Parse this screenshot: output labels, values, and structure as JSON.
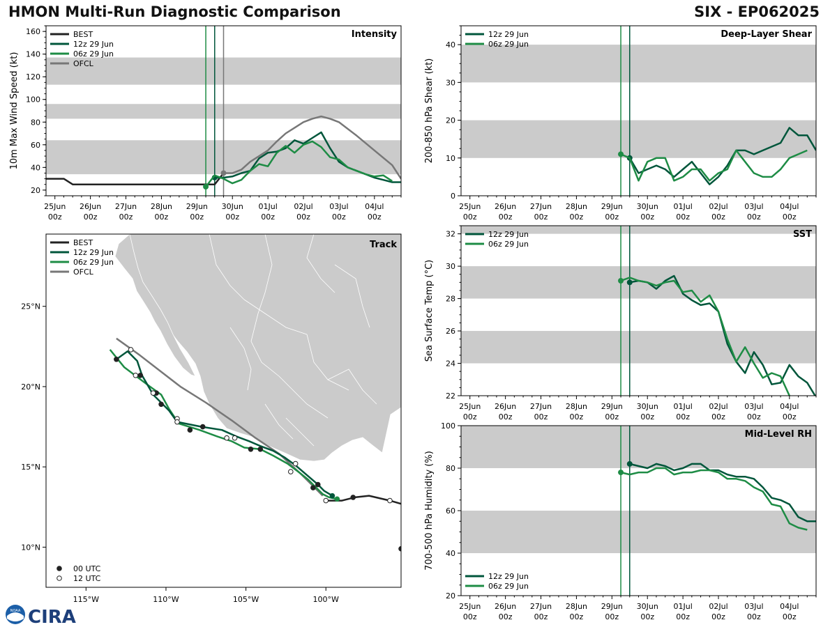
{
  "header": {
    "title": "HMON Multi-Run Diagnostic Comparison",
    "storm": "SIX - EP062025"
  },
  "colors": {
    "best": "#222222",
    "run12": "#00563b",
    "run06": "#1e8c45",
    "ofcl": "#777777",
    "band": "#cbcbcb",
    "land": "#cbcbcb"
  },
  "logos": {
    "cira": "CIRA",
    "noaa": "NOAA"
  },
  "time_axis": {
    "labels": [
      [
        "25Jun",
        "00z"
      ],
      [
        "26Jun",
        "00z"
      ],
      [
        "27Jun",
        "00z"
      ],
      [
        "28Jun",
        "00z"
      ],
      [
        "29Jun",
        "00z"
      ],
      [
        "30Jun",
        "00z"
      ],
      [
        "01Jul",
        "00z"
      ],
      [
        "02Jul",
        "00z"
      ],
      [
        "03Jul",
        "00z"
      ],
      [
        "04Jul",
        "00z"
      ]
    ]
  },
  "chart_data": [
    {
      "id": "intensity",
      "type": "line",
      "title": "Intensity",
      "ylabel": "10m Max Wind Speed (kt)",
      "ylim": [
        15,
        165
      ],
      "yticks": [
        20,
        40,
        60,
        80,
        100,
        120,
        140,
        160
      ],
      "xlim": [
        -0.25,
        9.75
      ],
      "bands": [
        [
          34,
          64
        ],
        [
          83,
          96
        ],
        [
          113,
          137
        ]
      ],
      "vlines": [
        {
          "x": 4.25,
          "color": "run06"
        },
        {
          "x": 4.5,
          "color": "run12"
        },
        {
          "x": 4.75,
          "color": "ofcl"
        }
      ],
      "legend": [
        "BEST",
        "12z 29 Jun",
        "06z 29 Jun",
        "OFCL"
      ],
      "series": [
        {
          "name": "BEST",
          "color": "best",
          "x": [
            -0.25,
            0.25,
            0.5,
            4.5,
            4.75
          ],
          "y": [
            30,
            30,
            25,
            25,
            35
          ]
        },
        {
          "name": "12z 29 Jun",
          "color": "run12",
          "marker_start": true,
          "x": [
            4.5,
            4.75,
            5,
            5.25,
            5.5,
            5.75,
            6,
            6.25,
            6.5,
            6.75,
            7,
            7.25,
            7.5,
            7.75,
            8,
            8.25,
            8.5,
            8.75,
            9,
            9.25,
            9.5,
            9.75
          ],
          "y": [
            31,
            31,
            32,
            35,
            37,
            48,
            53,
            54,
            57,
            64,
            61,
            66,
            71,
            57,
            45,
            40,
            37,
            34,
            31,
            29,
            27,
            27
          ]
        },
        {
          "name": "06z 29 Jun",
          "color": "run06",
          "marker_start": true,
          "x": [
            4.25,
            4.5,
            4.75,
            5,
            5.25,
            5.5,
            5.75,
            6,
            6.25,
            6.5,
            6.75,
            7,
            7.25,
            7.5,
            7.75,
            8,
            8.25,
            8.5,
            8.75,
            9,
            9.25,
            9.5
          ],
          "y": [
            23,
            33,
            30,
            26,
            29,
            37,
            43,
            41,
            53,
            59,
            53,
            60,
            63,
            58,
            49,
            47,
            40,
            37,
            34,
            32,
            33,
            28
          ]
        },
        {
          "name": "OFCL",
          "color": "ofcl",
          "marker_start": true,
          "x": [
            4.75,
            5,
            5.25,
            5.5,
            5.75,
            6,
            6.25,
            6.5,
            6.75,
            7,
            7.25,
            7.5,
            7.75,
            8,
            8.5,
            9,
            9.5,
            9.75
          ],
          "y": [
            35,
            35,
            38,
            45,
            50,
            55,
            63,
            70,
            75,
            80,
            83,
            85,
            83,
            80,
            68,
            55,
            42,
            30
          ]
        }
      ]
    },
    {
      "id": "track",
      "type": "scatter",
      "title": "Track",
      "xlim": [
        -117.5,
        -95.3
      ],
      "ylim": [
        7.5,
        29.5
      ],
      "xticks": [
        -115,
        -110,
        -105,
        -100
      ],
      "xtick_labels": [
        "115°W",
        "110°W",
        "105°W",
        "100°W"
      ],
      "yticks": [
        10,
        15,
        20,
        25
      ],
      "ytick_labels": [
        "10°N",
        "15°N",
        "20°N",
        "25°N"
      ],
      "legend": [
        "BEST",
        "12z 29 Jun",
        "06z 29 Jun",
        "OFCL"
      ],
      "marker_legend": [
        "00 UTC",
        "12 UTC"
      ],
      "series": [
        {
          "name": "BEST",
          "color": "best",
          "lon": [
            -95.3,
            -96.0,
            -97.3,
            -98.2,
            -99.0,
            -99.9
          ],
          "lat": [
            12.7,
            12.9,
            13.2,
            13.1,
            12.9,
            12.9
          ]
        },
        {
          "name": "12z 29 Jun",
          "color": "run12",
          "lon": [
            -99.6,
            -100.1,
            -100.5,
            -101.2,
            -101.9,
            -102.6,
            -103.3,
            -104.1,
            -104.8,
            -105.6,
            -106.5,
            -107.8,
            -109.3,
            -109.8,
            -110.3,
            -110.8,
            -111.5,
            -111.8,
            -112.4,
            -113.1
          ],
          "lat": [
            13.2,
            13.5,
            13.9,
            14.5,
            15.1,
            15.6,
            16.0,
            16.3,
            16.6,
            16.9,
            17.3,
            17.5,
            17.8,
            18.5,
            19.0,
            19.5,
            20.7,
            21.6,
            22.2,
            21.7
          ]
        },
        {
          "name": "06z 29 Jun",
          "color": "run06",
          "lon": [
            -99.3,
            -99.8,
            -100.2,
            -100.6,
            -101.1,
            -101.6,
            -102.4,
            -103.3,
            -104.1,
            -105.1,
            -105.9,
            -106.8,
            -107.9,
            -109.2,
            -109.8,
            -110.3,
            -111.0,
            -111.8,
            -112.6,
            -113.5
          ],
          "lat": [
            13.0,
            13.1,
            13.3,
            13.7,
            14.2,
            14.6,
            15.2,
            15.7,
            16.1,
            16.2,
            16.6,
            16.9,
            17.3,
            17.7,
            18.6,
            19.5,
            20.0,
            20.6,
            21.2,
            22.3
          ]
        },
        {
          "name": "OFCL",
          "color": "ofcl",
          "lon": [
            -100.2,
            -100.6,
            -101.5,
            -102.9,
            -104.4,
            -105.9,
            -107.5,
            -109.1,
            -110.4,
            -111.7,
            -113.1
          ],
          "lat": [
            13.2,
            13.6,
            14.5,
            15.8,
            16.8,
            17.9,
            19.0,
            20.0,
            21.0,
            22.0,
            23.0
          ]
        }
      ],
      "markers_00utc": [
        {
          "lon": -98.3,
          "lat": 13.1,
          "color": "best"
        },
        {
          "lon": -100.5,
          "lat": 13.9,
          "color": "best"
        },
        {
          "lon": -100.8,
          "lat": 13.7,
          "color": "best"
        },
        {
          "lon": -104.1,
          "lat": 16.1,
          "color": "best"
        },
        {
          "lon": -104.7,
          "lat": 16.1,
          "color": "best"
        },
        {
          "lon": -107.7,
          "lat": 17.5,
          "color": "best"
        },
        {
          "lon": -108.5,
          "lat": 17.3,
          "color": "best"
        },
        {
          "lon": -110.3,
          "lat": 18.9,
          "color": "best"
        },
        {
          "lon": -110.6,
          "lat": 19.6,
          "color": "best"
        },
        {
          "lon": -111.6,
          "lat": 20.7,
          "color": "best"
        },
        {
          "lon": -113.1,
          "lat": 21.7,
          "color": "best"
        },
        {
          "lon": -99.6,
          "lat": 13.2,
          "color": "run12"
        },
        {
          "lon": -99.3,
          "lat": 13.0,
          "color": "run06"
        },
        {
          "lon": -95.3,
          "lat": 9.9,
          "color": "best"
        }
      ],
      "markers_12utc": [
        {
          "lon": -96.0,
          "lat": 12.9
        },
        {
          "lon": -100.0,
          "lat": 12.9
        },
        {
          "lon": -101.9,
          "lat": 15.2
        },
        {
          "lon": -102.2,
          "lat": 14.7
        },
        {
          "lon": -105.7,
          "lat": 16.8
        },
        {
          "lon": -106.2,
          "lat": 16.8
        },
        {
          "lon": -109.3,
          "lat": 18.0
        },
        {
          "lon": -109.3,
          "lat": 17.8
        },
        {
          "lon": -110.8,
          "lat": 19.6
        },
        {
          "lon": -111.9,
          "lat": 20.7
        },
        {
          "lon": -112.2,
          "lat": 22.3
        }
      ]
    },
    {
      "id": "shear",
      "type": "line",
      "title": "Deep-Layer Shear",
      "ylabel": "200-850 hPa Shear (kt)",
      "ylim": [
        0,
        45
      ],
      "yticks": [
        0,
        10,
        20,
        30,
        40
      ],
      "xlim": [
        -0.25,
        9.75
      ],
      "bands": [
        [
          10,
          20
        ],
        [
          30,
          40
        ]
      ],
      "vlines": [
        {
          "x": 4.25,
          "color": "run06"
        },
        {
          "x": 4.5,
          "color": "run12"
        }
      ],
      "legend": [
        "12z 29 Jun",
        "06z 29 Jun"
      ],
      "series": [
        {
          "name": "12z 29 Jun",
          "color": "run12",
          "marker_start": true,
          "x": [
            4.5,
            4.75,
            5,
            5.25,
            5.5,
            5.75,
            6,
            6.25,
            6.5,
            6.75,
            7,
            7.25,
            7.5,
            7.75,
            8,
            8.25,
            8.5,
            8.75,
            9,
            9.25,
            9.5,
            9.75
          ],
          "y": [
            10,
            6,
            7,
            8,
            7,
            5,
            7,
            9,
            6,
            3,
            5,
            8,
            12,
            12,
            11,
            12,
            13,
            14,
            18,
            16,
            16,
            12
          ]
        },
        {
          "name": "06z 29 Jun",
          "color": "run06",
          "marker_start": true,
          "x": [
            4.25,
            4.5,
            4.75,
            5,
            5.25,
            5.5,
            5.75,
            6,
            6.25,
            6.5,
            6.75,
            7,
            7.25,
            7.5,
            7.75,
            8,
            8.25,
            8.5,
            8.75,
            9,
            9.25,
            9.5
          ],
          "y": [
            11,
            10,
            4,
            9,
            10,
            10,
            4,
            5,
            7,
            7,
            4,
            6,
            7,
            12,
            9,
            6,
            5,
            5,
            7,
            10,
            11,
            12
          ]
        }
      ]
    },
    {
      "id": "sst",
      "type": "line",
      "title": "SST",
      "ylabel": "Sea Surface Temp (°C)",
      "ylim": [
        22,
        32.5
      ],
      "yticks": [
        22,
        24,
        26,
        28,
        30,
        32
      ],
      "xlim": [
        -0.25,
        9.75
      ],
      "bands": [
        [
          24,
          26
        ],
        [
          28,
          30
        ],
        [
          32,
          32.5
        ]
      ],
      "vlines": [
        {
          "x": 4.25,
          "color": "run06"
        },
        {
          "x": 4.5,
          "color": "run12"
        }
      ],
      "legend": [
        "12z 29 Jun",
        "06z 29 Jun"
      ],
      "series": [
        {
          "name": "12z 29 Jun",
          "color": "run12",
          "marker_start": true,
          "x": [
            4.5,
            4.75,
            5,
            5.25,
            5.5,
            5.75,
            6,
            6.25,
            6.5,
            6.75,
            7,
            7.25,
            7.5,
            7.75,
            8,
            8.25,
            8.5,
            8.75,
            9,
            9.25,
            9.5,
            9.75
          ],
          "y": [
            29.0,
            29.1,
            29.0,
            28.6,
            29.1,
            29.4,
            28.3,
            27.9,
            27.6,
            27.7,
            27.2,
            25.2,
            24.1,
            23.4,
            24.7,
            23.9,
            22.7,
            22.8,
            23.9,
            23.2,
            22.8,
            21.9
          ]
        },
        {
          "name": "06z 29 Jun",
          "color": "run06",
          "marker_start": true,
          "x": [
            4.25,
            4.5,
            4.75,
            5,
            5.25,
            5.5,
            5.75,
            6,
            6.25,
            6.5,
            6.75,
            7,
            7.25,
            7.5,
            7.75,
            8,
            8.25,
            8.5,
            8.75,
            9
          ],
          "y": [
            29.1,
            29.3,
            29.1,
            29.0,
            28.8,
            29.0,
            29.1,
            28.4,
            28.5,
            27.8,
            28.2,
            27.2,
            25.5,
            24.1,
            25.0,
            24.0,
            23.1,
            23.4,
            23.2,
            22.0
          ]
        }
      ]
    },
    {
      "id": "rh",
      "type": "line",
      "title": "Mid-Level RH",
      "ylabel": "700-500 hPa Humidity (%)",
      "ylim": [
        20,
        100
      ],
      "yticks": [
        20,
        40,
        60,
        80,
        100
      ],
      "xlim": [
        -0.25,
        9.75
      ],
      "bands": [
        [
          40,
          60
        ],
        [
          80,
          100
        ]
      ],
      "vlines": [
        {
          "x": 4.25,
          "color": "run06"
        },
        {
          "x": 4.5,
          "color": "run12"
        }
      ],
      "legend": [
        "12z 29 Jun",
        "06z 29 Jun"
      ],
      "series": [
        {
          "name": "12z 29 Jun",
          "color": "run12",
          "marker_start": true,
          "x": [
            4.5,
            4.75,
            5,
            5.25,
            5.5,
            5.75,
            6,
            6.25,
            6.5,
            6.75,
            7,
            7.25,
            7.5,
            7.75,
            8,
            8.25,
            8.5,
            8.75,
            9,
            9.25,
            9.5,
            9.75
          ],
          "y": [
            82,
            81,
            80,
            82,
            81,
            79,
            80,
            82,
            82,
            79,
            79,
            77,
            76,
            76,
            75,
            71,
            66,
            65,
            63,
            57,
            55,
            55
          ]
        },
        {
          "name": "06z 29 Jun",
          "color": "run06",
          "marker_start": true,
          "x": [
            4.25,
            4.5,
            4.75,
            5,
            5.25,
            5.5,
            5.75,
            6,
            6.25,
            6.5,
            6.75,
            7,
            7.25,
            7.5,
            7.75,
            8,
            8.25,
            8.5,
            8.75,
            9,
            9.25,
            9.5
          ],
          "y": [
            78,
            77,
            78,
            78,
            80,
            80,
            77,
            78,
            78,
            79,
            79,
            78,
            75,
            75,
            74,
            71,
            69,
            63,
            62,
            54,
            52,
            51
          ]
        }
      ]
    }
  ]
}
